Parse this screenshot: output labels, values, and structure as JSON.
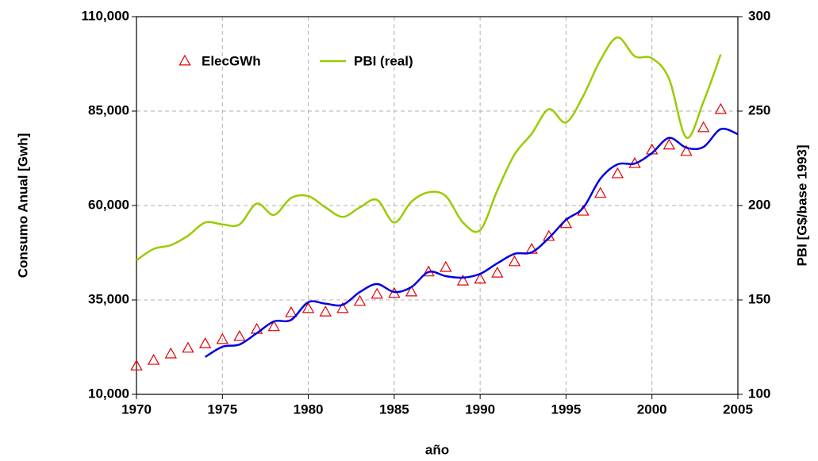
{
  "chart_data": {
    "type": "line",
    "xlabel": "año",
    "ylabel": "Consumo Anual [Gwh]",
    "y2label": "PBI  [G$/base 1993]",
    "x": [
      1970,
      1971,
      1972,
      1973,
      1974,
      1975,
      1976,
      1977,
      1978,
      1979,
      1980,
      1981,
      1982,
      1983,
      1984,
      1985,
      1986,
      1987,
      1988,
      1989,
      1990,
      1991,
      1992,
      1993,
      1994,
      1995,
      1996,
      1997,
      1998,
      1999,
      2000,
      2001,
      2002,
      2003,
      2004,
      2005
    ],
    "xlim": [
      1970,
      2005
    ],
    "xticks": [
      1970,
      1975,
      1980,
      1985,
      1990,
      1995,
      2000,
      2005
    ],
    "ylim": [
      10000,
      110000
    ],
    "yticks": [
      {
        "value": 10000,
        "label": "10,000"
      },
      {
        "value": 35000,
        "label": "35,000"
      },
      {
        "value": 60000,
        "label": "60,000"
      },
      {
        "value": 85000,
        "label": "85,000"
      },
      {
        "value": 110000,
        "label": "110,000"
      }
    ],
    "y2lim": [
      100,
      300
    ],
    "y2ticks": [
      100,
      150,
      200,
      250,
      300
    ],
    "grid": true,
    "legend": "upper left",
    "series": [
      {
        "name": "ElecGWh",
        "color": "#e00000",
        "marker": "triangle",
        "values": [
          17500,
          19000,
          20700,
          22200,
          23400,
          24500,
          25300,
          27200,
          27900,
          31600,
          32700,
          31800,
          32700,
          34600,
          36500,
          36700,
          37100,
          42400,
          43600,
          40000,
          40500,
          42100,
          45100,
          48400,
          51800,
          55200,
          58500,
          63200,
          68400,
          71100,
          74700,
          76000,
          74300,
          80600,
          85400,
          null
        ]
      },
      {
        "name": "PBI (real)",
        "color": "#99cc00",
        "axis": "y2",
        "values": [
          171,
          177,
          179,
          184,
          191,
          190,
          190,
          201,
          195,
          204,
          205,
          199,
          194,
          199,
          203,
          191,
          202,
          207,
          205,
          191,
          187,
          208,
          227,
          238,
          251,
          244,
          258,
          277,
          289,
          279,
          278,
          267,
          236,
          255,
          280,
          null
        ]
      },
      {
        "color": "#0000e0",
        "values": [
          null,
          null,
          null,
          null,
          19900,
          22600,
          23200,
          26200,
          29300,
          29700,
          34400,
          34000,
          33700,
          37100,
          39200,
          37100,
          38400,
          42400,
          41300,
          40900,
          41900,
          44700,
          47200,
          47600,
          51400,
          56200,
          59400,
          67100,
          70900,
          71100,
          73900,
          77900,
          75300,
          75500,
          80200,
          78900
        ]
      }
    ]
  }
}
